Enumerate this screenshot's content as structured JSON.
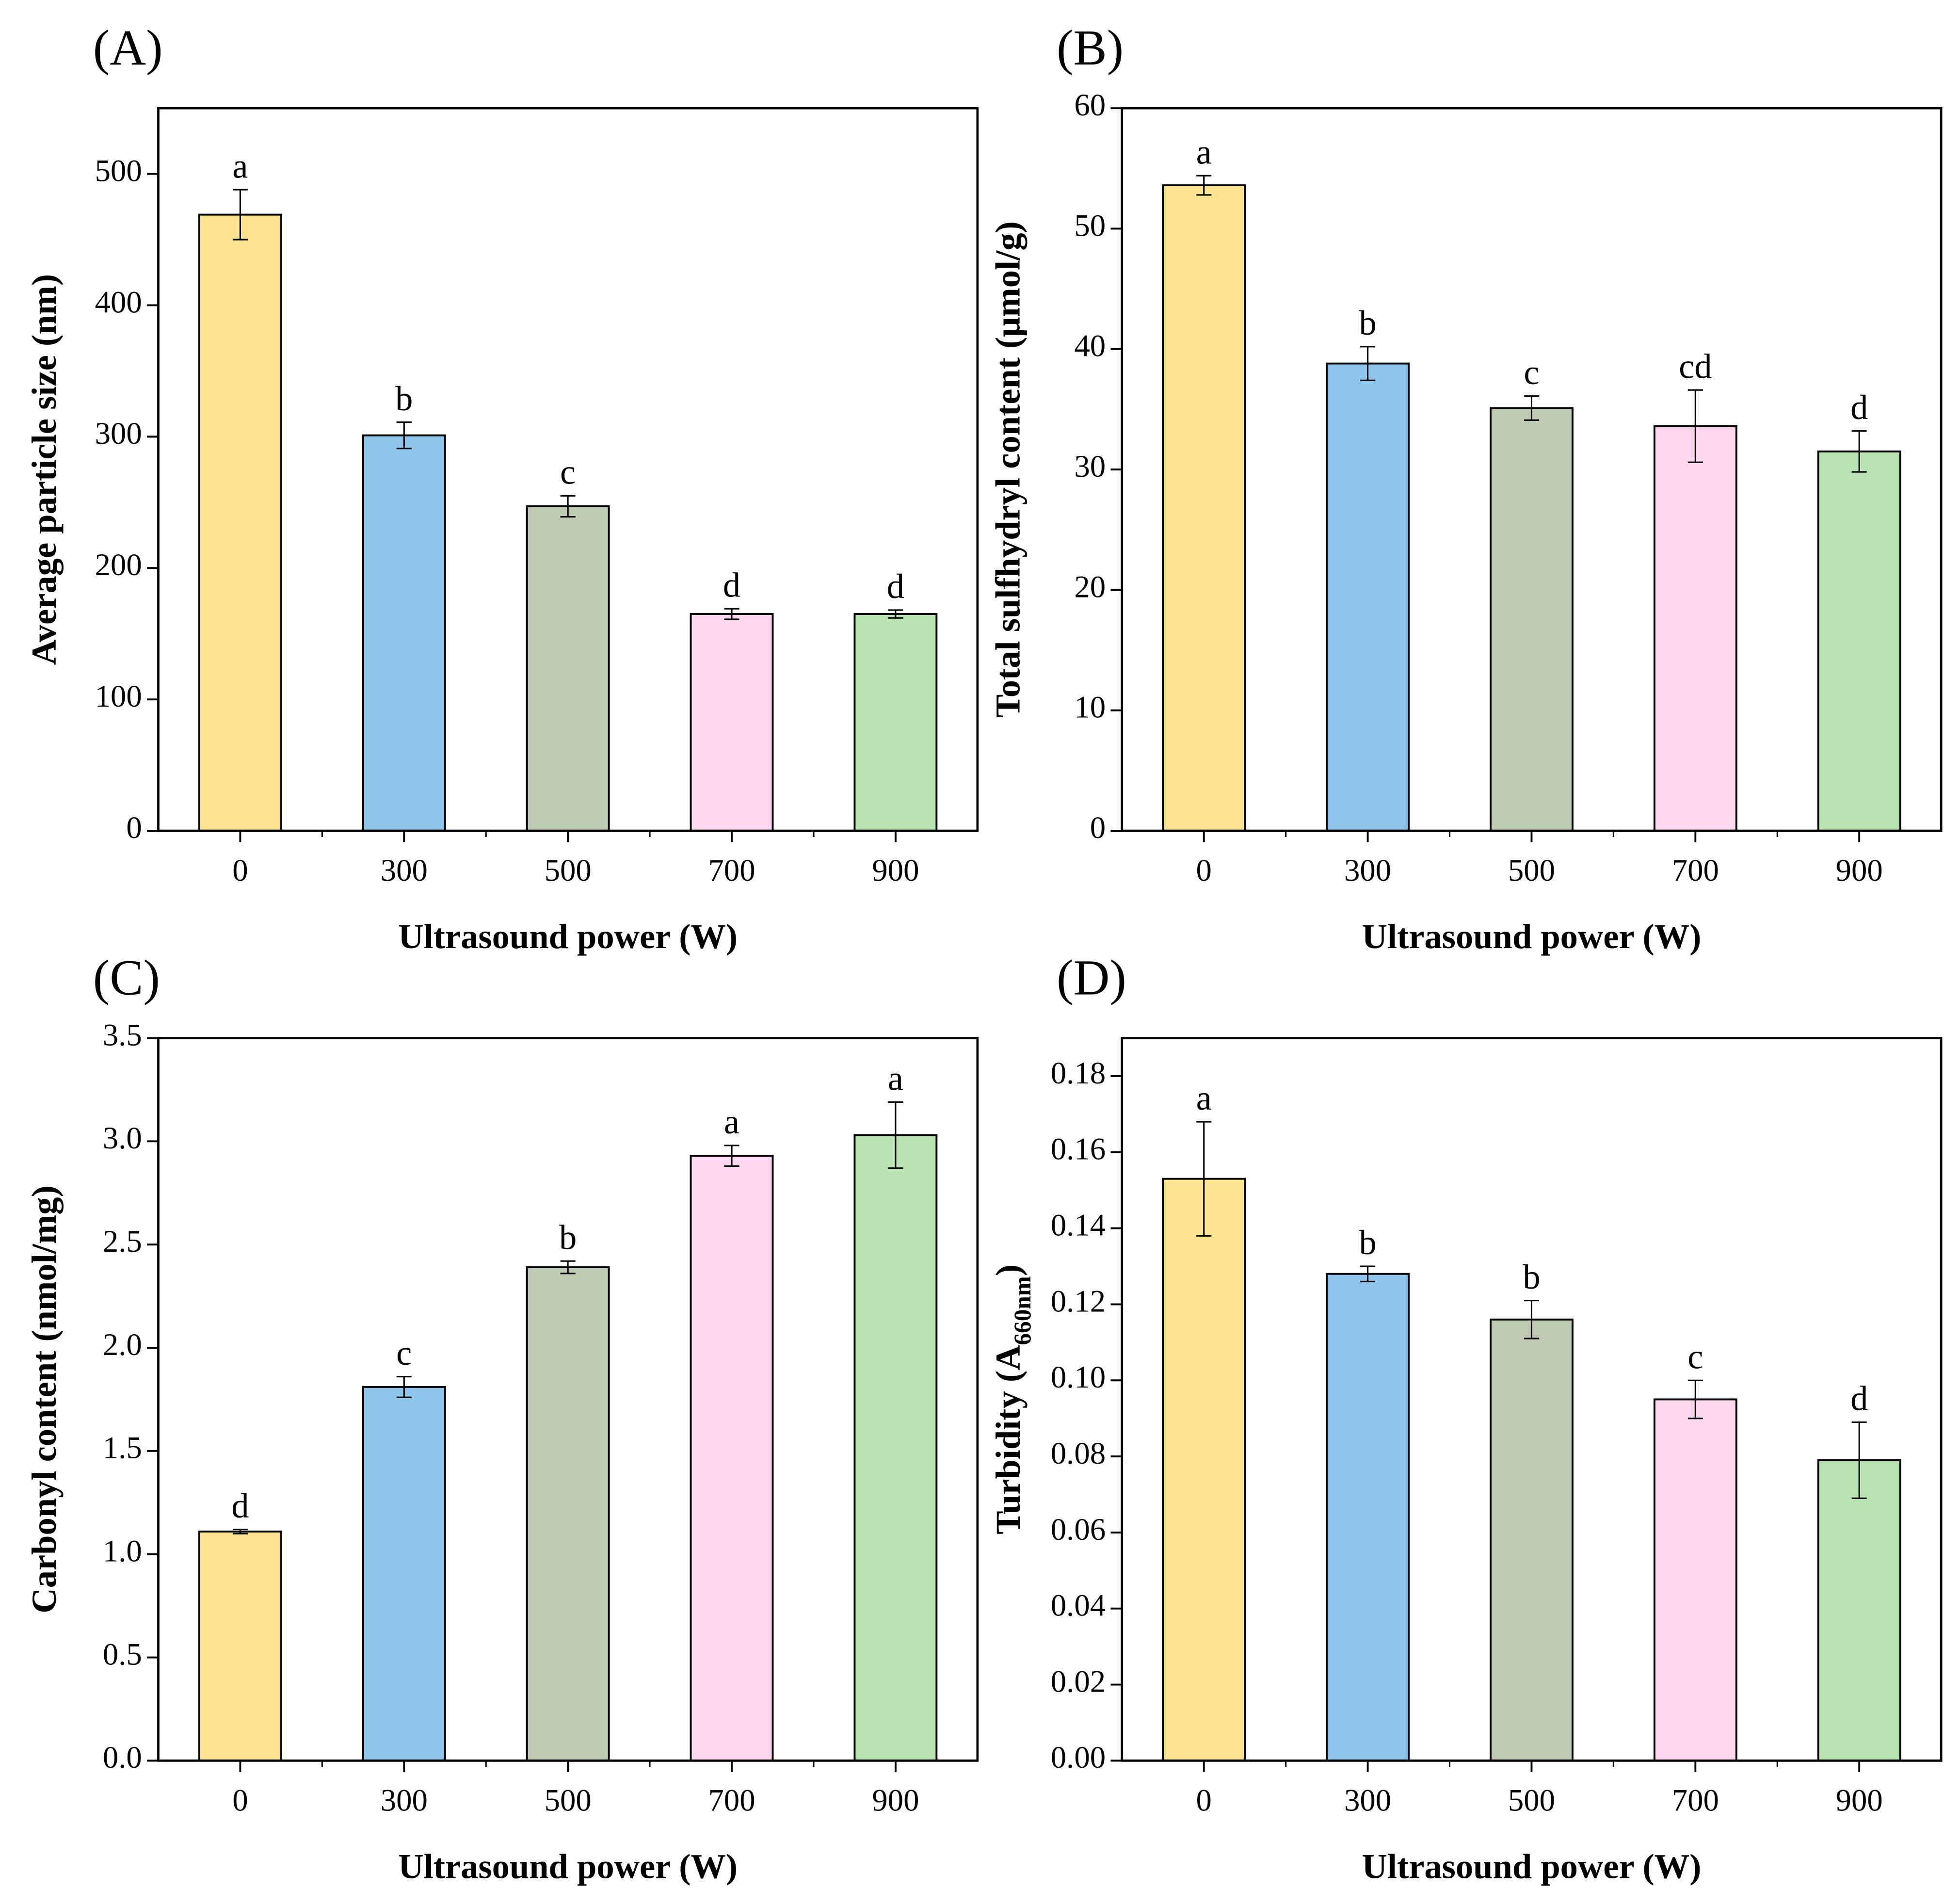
{
  "chart_data": [
    {
      "type": "bar",
      "panel": "(A)",
      "ylabel": "Average particle size (nm)",
      "xlabel": "Ultrasound power (W)",
      "categories": [
        "0",
        "300",
        "500",
        "700",
        "900"
      ],
      "values": [
        469,
        301,
        247,
        165,
        165
      ],
      "errors": [
        19,
        10,
        8,
        4,
        3
      ],
      "annotations": [
        "a",
        "b",
        "c",
        "d",
        "d"
      ],
      "colors": [
        "#fce38f",
        "#8ec5ea",
        "#bfcab3",
        "#fdd8ee",
        "#b8e2b0"
      ],
      "ylim": [
        0,
        550
      ],
      "yticks": [
        0,
        100,
        200,
        300,
        400,
        500
      ]
    },
    {
      "type": "bar",
      "panel": "(B)",
      "ylabel": "Total sulfhydryl content (μmol/g)",
      "xlabel": "Ultrasound power (W)",
      "categories": [
        "0",
        "300",
        "500",
        "700",
        "900"
      ],
      "values": [
        53.6,
        38.8,
        35.1,
        33.6,
        31.5
      ],
      "errors": [
        0.8,
        1.4,
        1.0,
        3.0,
        1.7
      ],
      "annotations": [
        "a",
        "b",
        "c",
        "cd",
        "d"
      ],
      "colors": [
        "#fce38f",
        "#8ec5ea",
        "#bfcab3",
        "#fdd8ee",
        "#b8e2b0"
      ],
      "ylim": [
        0,
        60
      ],
      "yticks": [
        0,
        10,
        20,
        30,
        40,
        50,
        60
      ]
    },
    {
      "type": "bar",
      "panel": "(C)",
      "ylabel": "Carbonyl content (nmol/mg)",
      "xlabel": "Ultrasound power (W)",
      "categories": [
        "0",
        "300",
        "500",
        "700",
        "900"
      ],
      "values": [
        1.11,
        1.81,
        2.39,
        2.93,
        3.03
      ],
      "errors": [
        0.01,
        0.05,
        0.03,
        0.05,
        0.16
      ],
      "annotations": [
        "d",
        "c",
        "b",
        "a",
        "a"
      ],
      "colors": [
        "#fce38f",
        "#8ec5ea",
        "#bfcab3",
        "#fdd8ee",
        "#b8e2b0"
      ],
      "ylim": [
        0,
        3.5
      ],
      "yticks": [
        {
          "value": 0,
          "label": "0.0"
        },
        0.5,
        {
          "value": 1,
          "label": "1.0"
        },
        1.5,
        {
          "value": 2,
          "label": "2.0"
        },
        2.5,
        {
          "value": 3,
          "label": "3.0"
        },
        3.5
      ]
    },
    {
      "type": "bar",
      "panel": "(D)",
      "ylabel": [
        {
          "text": "Turbidity (A"
        },
        {
          "text": "660nm",
          "sub": true
        },
        {
          "text": ")"
        }
      ],
      "xlabel": "Ultrasound power (W)",
      "categories": [
        "0",
        "300",
        "500",
        "700",
        "900"
      ],
      "values": [
        0.153,
        0.128,
        0.116,
        0.095,
        0.079
      ],
      "errors": [
        0.015,
        0.002,
        0.005,
        0.005,
        0.01
      ],
      "annotations": [
        "a",
        "b",
        "b",
        "c",
        "d"
      ],
      "colors": [
        "#fce38f",
        "#8ec5ea",
        "#bfcab3",
        "#fdd8ee",
        "#b8e2b0"
      ],
      "ylim": [
        0,
        0.19
      ],
      "yticks": [
        {
          "value": 0,
          "label": "0.00"
        },
        {
          "value": 0.02,
          "label": "0.02"
        },
        {
          "value": 0.04,
          "label": "0.04"
        },
        {
          "value": 0.06,
          "label": "0.06"
        },
        {
          "value": 0.08,
          "label": "0.08"
        },
        {
          "value": 0.1,
          "label": "0.10"
        },
        {
          "value": 0.12,
          "label": "0.12"
        },
        {
          "value": 0.14,
          "label": "0.14"
        },
        {
          "value": 0.16,
          "label": "0.16"
        },
        {
          "value": 0.18,
          "label": "0.18"
        }
      ]
    }
  ]
}
